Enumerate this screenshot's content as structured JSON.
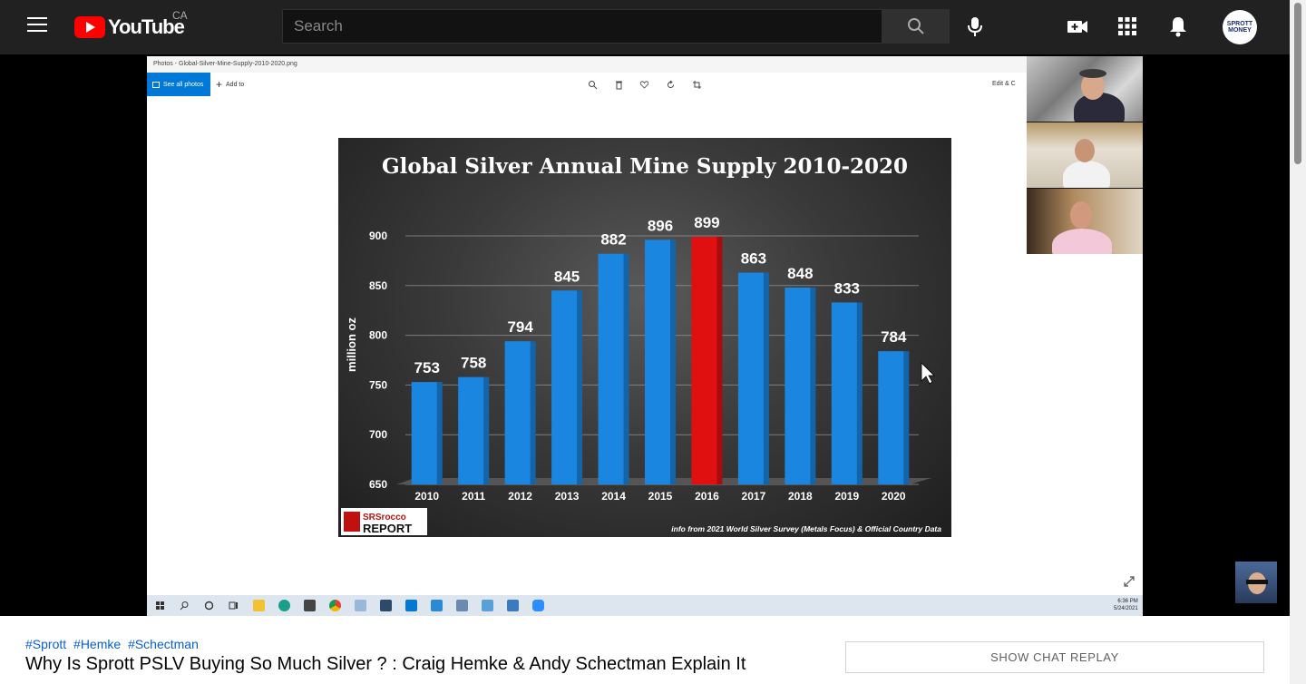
{
  "header": {
    "logo_text": "YouTube",
    "country": "CA",
    "search_placeholder": "Search",
    "avatar_text": "SPROTT MONEY"
  },
  "photos_app": {
    "window_title": "Photos - Global-Silver-Mine-Supply-2010-2020.png",
    "see_all_label": "See all photos",
    "add_to_label": "Add to",
    "edit_label": "Edit & C"
  },
  "chart_data": {
    "type": "bar",
    "title": "Global Silver Annual Mine Supply 2010-2020",
    "ylabel": "million oz",
    "xlabel": "",
    "categories": [
      "2010",
      "2011",
      "2012",
      "2013",
      "2014",
      "2015",
      "2016",
      "2017",
      "2018",
      "2019",
      "2020"
    ],
    "values": [
      753,
      758,
      794,
      845,
      882,
      896,
      899,
      863,
      848,
      833,
      784
    ],
    "highlight_index": 6,
    "yticks": [
      650,
      700,
      750,
      800,
      850,
      900
    ],
    "ylim": [
      650,
      900
    ],
    "grid": true,
    "bar_color": "#1a86e0",
    "highlight_color": "#e01010",
    "source_note": "info from 2021 World Silver Survey (Metals Focus) & Official Country Data",
    "logo_text": [
      "SRSrocco",
      "REPORT"
    ]
  },
  "taskbar": {
    "time": "6:36 PM",
    "date": "5/24/2021"
  },
  "below": {
    "hashtags": [
      "#Sprott",
      "#Hemke",
      "#Schectman"
    ],
    "title": "Why Is Sprott PSLV Buying So Much Silver ? : Craig Hemke & Andy Schectman Explain It",
    "chat_button": "SHOW CHAT REPLAY"
  }
}
